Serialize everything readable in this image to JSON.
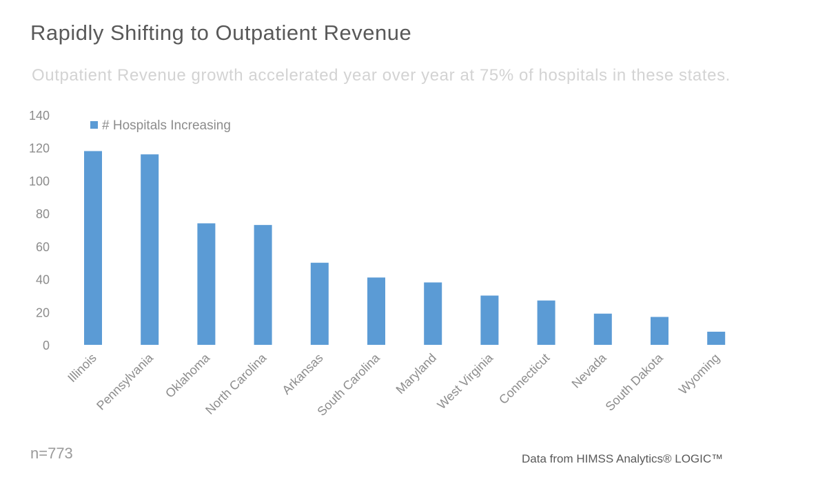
{
  "header": {
    "title": "Rapidly Shifting to Outpatient Revenue",
    "subtitle": "Outpatient Revenue growth accelerated year over year at 75% of hospitals in these states."
  },
  "footer": {
    "sample_note": "n=773",
    "source": "Data from HIMSS Analytics® LOGIC™"
  },
  "colors": {
    "bar": "#5b9bd5",
    "axis_text": "#8c8c8c"
  },
  "chart_data": {
    "type": "bar",
    "title": "",
    "xlabel": "",
    "ylabel": "",
    "ylim": [
      0,
      140
    ],
    "yticks": [
      0,
      20,
      40,
      60,
      80,
      100,
      120,
      140
    ],
    "grid": false,
    "legend_position": "top-left",
    "categories": [
      "Illinois",
      "Pennsylvania",
      "Oklahoma",
      "North Carolina",
      "Arkansas",
      "South Carolina",
      "Maryland",
      "West Virginia",
      "Connecticut",
      "Nevada",
      "South Dakota",
      "Wyoming"
    ],
    "series": [
      {
        "name": "# Hospitals Increasing",
        "values": [
          118,
          116,
          74,
          73,
          50,
          41,
          38,
          30,
          27,
          19,
          17,
          8
        ]
      }
    ]
  }
}
